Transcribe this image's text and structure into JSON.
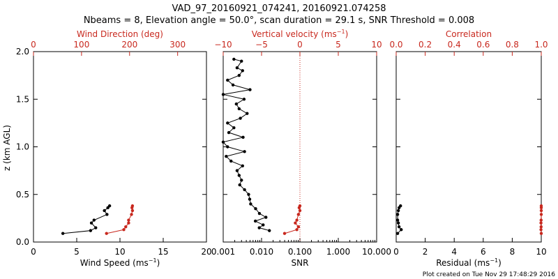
{
  "title_line1": "VAD_97_20160921_074241, 20160921.074258",
  "title_line2": "Nbeams = 8, Elevation angle = 50.0°, scan duration = 29.1 s, SNR Threshold = 0.008",
  "footer": "Plot created on Tue Nov 29 17:48:29 2016",
  "colors": {
    "primary": "#000000",
    "secondary": "#c8281e"
  },
  "chart_data": [
    {
      "type": "line",
      "ylabel": "z (km AGL)",
      "ylim": [
        0,
        2.0
      ],
      "yticks": [
        "0.0",
        "0.5",
        "1.0",
        "1.5",
        "2.0"
      ],
      "bottom_axis": {
        "label": "Wind Speed (ms",
        "label_sup": "−1",
        "label_end": ")",
        "range": [
          0,
          20
        ],
        "ticks": [
          0,
          5,
          10,
          15,
          20
        ],
        "tick_labels": [
          "0",
          "5",
          "10",
          "15",
          "20"
        ]
      },
      "top_axis": {
        "label": "Wind Direction (deg)",
        "range": [
          0,
          360
        ],
        "ticks": [
          0,
          100,
          200,
          300
        ],
        "tick_labels": [
          "0",
          "100",
          "200",
          "300"
        ]
      },
      "series": [
        {
          "name": "Wind Speed",
          "axis": "bottom",
          "color": "#000000",
          "values": [
            [
              3.4,
              0.09
            ],
            [
              6.6,
              0.12
            ],
            [
              7.2,
              0.15
            ],
            [
              6.7,
              0.2
            ],
            [
              7.0,
              0.23
            ],
            [
              8.5,
              0.29
            ],
            [
              8.2,
              0.33
            ],
            [
              8.6,
              0.36
            ],
            [
              8.8,
              0.38
            ]
          ]
        },
        {
          "name": "Wind Direction",
          "axis": "top",
          "color": "#c8281e",
          "values": [
            [
              152,
              0.09
            ],
            [
              188,
              0.13
            ],
            [
              192,
              0.16
            ],
            [
              198,
              0.2
            ],
            [
              198,
              0.23
            ],
            [
              204,
              0.29
            ],
            [
              206,
              0.33
            ],
            [
              205,
              0.36
            ],
            [
              206,
              0.38
            ]
          ]
        }
      ]
    },
    {
      "type": "line",
      "ylim": [
        0,
        2.0
      ],
      "bottom_axis": {
        "label": "SNR",
        "scale": "log",
        "range": [
          0.001,
          10
        ],
        "ticks": [
          0.001,
          0.01,
          0.1,
          1,
          10
        ],
        "tick_labels": [
          "0.001",
          "0.010",
          "0.100",
          "1.000",
          "10.000"
        ]
      },
      "top_axis": {
        "label": "Vertical velocity (ms",
        "label_sup": "−1",
        "label_end": ")",
        "range": [
          -10,
          10
        ],
        "ticks": [
          -10,
          -5,
          0,
          5,
          10
        ],
        "tick_labels": [
          "−10",
          "−5",
          "0",
          "5",
          "10"
        ]
      },
      "reference_line": {
        "axis": "top",
        "value": 0,
        "style": "dotted",
        "color": "#c8281e"
      },
      "series": [
        {
          "name": "SNR",
          "axis": "bottom",
          "color": "#000000",
          "values": [
            [
              0.0019,
              1.92
            ],
            [
              0.003,
              1.9
            ],
            [
              0.0023,
              1.83
            ],
            [
              0.0032,
              1.8
            ],
            [
              0.0026,
              1.75
            ],
            [
              0.0013,
              1.7
            ],
            [
              0.0018,
              1.65
            ],
            [
              0.005,
              1.6
            ],
            [
              0.001,
              1.55
            ],
            [
              0.0035,
              1.5
            ],
            [
              0.0022,
              1.45
            ],
            [
              0.0026,
              1.4
            ],
            [
              0.0042,
              1.35
            ],
            [
              0.0028,
              1.3
            ],
            [
              0.0013,
              1.25
            ],
            [
              0.0019,
              1.2
            ],
            [
              0.0014,
              1.15
            ],
            [
              0.0033,
              1.1
            ],
            [
              0.001,
              1.05
            ],
            [
              0.0013,
              1.0
            ],
            [
              0.0036,
              0.95
            ],
            [
              0.0012,
              0.9
            ],
            [
              0.0016,
              0.85
            ],
            [
              0.0032,
              0.8
            ],
            [
              0.0023,
              0.75
            ],
            [
              0.0026,
              0.7
            ],
            [
              0.003,
              0.65
            ],
            [
              0.0027,
              0.6
            ],
            [
              0.0036,
              0.55
            ],
            [
              0.0046,
              0.5
            ],
            [
              0.0049,
              0.45
            ],
            [
              0.0052,
              0.4
            ],
            [
              0.007,
              0.35
            ],
            [
              0.0088,
              0.3
            ],
            [
              0.013,
              0.26
            ],
            [
              0.0069,
              0.22
            ],
            [
              0.011,
              0.18
            ],
            [
              0.0087,
              0.15
            ],
            [
              0.016,
              0.12
            ]
          ]
        },
        {
          "name": "Vertical velocity",
          "axis": "top",
          "color": "#c8281e",
          "values": [
            [
              -2.0,
              0.09
            ],
            [
              -0.4,
              0.13
            ],
            [
              -0.2,
              0.16
            ],
            [
              -0.6,
              0.2
            ],
            [
              -0.4,
              0.23
            ],
            [
              -0.2,
              0.29
            ],
            [
              0.0,
              0.33
            ],
            [
              -0.1,
              0.36
            ],
            [
              0.0,
              0.38
            ]
          ]
        }
      ]
    },
    {
      "type": "line",
      "ylim": [
        0,
        2.0
      ],
      "bottom_axis": {
        "label": "Residual (ms",
        "label_sup": "−1",
        "label_end": ")",
        "range": [
          0,
          10
        ],
        "ticks": [
          0,
          2,
          4,
          6,
          8,
          10
        ],
        "tick_labels": [
          "0",
          "2",
          "4",
          "6",
          "8",
          "10"
        ]
      },
      "top_axis": {
        "label": "Correlation",
        "range": [
          0,
          1
        ],
        "ticks": [
          0,
          0.2,
          0.4,
          0.6,
          0.8,
          1.0
        ],
        "tick_labels": [
          "0.0",
          "0.2",
          "0.4",
          "0.6",
          "0.8",
          "1.0"
        ]
      },
      "series": [
        {
          "name": "Residual",
          "axis": "bottom",
          "color": "#000000",
          "values": [
            [
              0.1,
              0.09
            ],
            [
              0.35,
              0.13
            ],
            [
              0.2,
              0.16
            ],
            [
              0.15,
              0.2
            ],
            [
              0.1,
              0.23
            ],
            [
              0.1,
              0.29
            ],
            [
              0.15,
              0.33
            ],
            [
              0.2,
              0.36
            ],
            [
              0.3,
              0.38
            ]
          ]
        },
        {
          "name": "Correlation",
          "axis": "top",
          "color": "#c8281e",
          "values": [
            [
              1.0,
              0.09
            ],
            [
              0.998,
              0.13
            ],
            [
              0.999,
              0.16
            ],
            [
              0.998,
              0.2
            ],
            [
              0.999,
              0.23
            ],
            [
              1.0,
              0.29
            ],
            [
              1.0,
              0.33
            ],
            [
              1.0,
              0.36
            ],
            [
              1.0,
              0.38
            ]
          ]
        }
      ]
    }
  ]
}
